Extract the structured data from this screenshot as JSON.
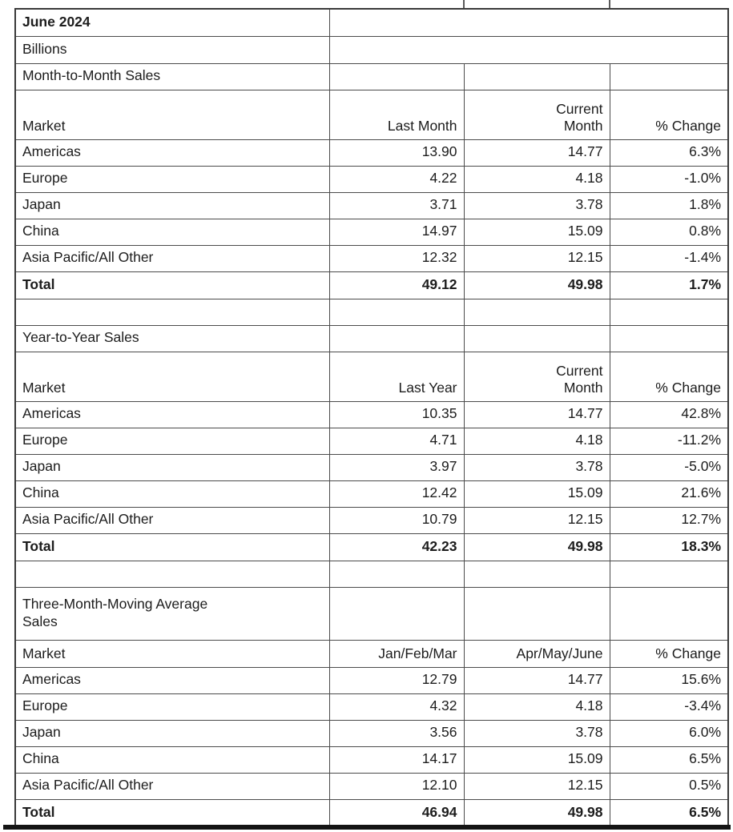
{
  "header": {
    "title": "June 2024",
    "units": "Billions"
  },
  "chart_data": [
    {
      "type": "table",
      "title": "Month-to-Month Sales",
      "columns": [
        "Market",
        "Last Month",
        "Current Month",
        "% Change"
      ],
      "rows": [
        [
          "Americas",
          "13.90",
          "14.77",
          "6.3%"
        ],
        [
          "Europe",
          "4.22",
          "4.18",
          "-1.0%"
        ],
        [
          "Japan",
          "3.71",
          "3.78",
          "1.8%"
        ],
        [
          "China",
          "14.97",
          "15.09",
          "0.8%"
        ],
        [
          "Asia Pacific/All Other",
          "12.32",
          "12.15",
          "-1.4%"
        ]
      ],
      "total_row": [
        "Total",
        "49.12",
        "49.98",
        "1.7%"
      ]
    },
    {
      "type": "table",
      "title": "Year-to-Year Sales",
      "columns": [
        "Market",
        "Last Year",
        "Current Month",
        "% Change"
      ],
      "rows": [
        [
          "Americas",
          "10.35",
          "14.77",
          "42.8%"
        ],
        [
          "Europe",
          "4.71",
          "4.18",
          "-11.2%"
        ],
        [
          "Japan",
          "3.97",
          "3.78",
          "-5.0%"
        ],
        [
          "China",
          "12.42",
          "15.09",
          "21.6%"
        ],
        [
          "Asia Pacific/All Other",
          "10.79",
          "12.15",
          "12.7%"
        ]
      ],
      "total_row": [
        "Total",
        "42.23",
        "49.98",
        "18.3%"
      ]
    },
    {
      "type": "table",
      "title": "Three-Month-Moving Average Sales",
      "columns": [
        "Market",
        "Jan/Feb/Mar",
        "Apr/May/June",
        "% Change"
      ],
      "rows": [
        [
          "Americas",
          "12.79",
          "14.77",
          "15.6%"
        ],
        [
          "Europe",
          "4.32",
          "4.18",
          "-3.4%"
        ],
        [
          "Japan",
          "3.56",
          "3.78",
          "6.0%"
        ],
        [
          "China",
          "14.17",
          "15.09",
          "6.5%"
        ],
        [
          "Asia Pacific/All Other",
          "12.10",
          "12.15",
          "0.5%"
        ]
      ],
      "total_row": [
        "Total",
        "46.94",
        "49.98",
        "6.5%"
      ]
    }
  ],
  "colors": {
    "text": "#1c1c1c",
    "grid_border": "#4b4b4b",
    "outer_border": "#3a3a3a",
    "bottom_rule": "#141414",
    "background": "#ffffff"
  }
}
